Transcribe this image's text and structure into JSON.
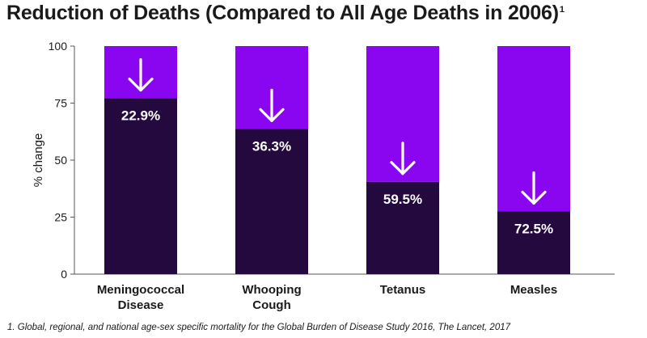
{
  "chart_data": {
    "type": "bar",
    "title": "Reduction of Deaths (Compared to All Age Deaths in 2006)",
    "title_footnote_marker": "1",
    "ylabel": "% change",
    "xlabel": "",
    "ylim": [
      0,
      100
    ],
    "yticks": [
      0,
      25,
      50,
      75,
      100
    ],
    "categories": [
      [
        "Meningococcal",
        "Disease"
      ],
      [
        "Whooping",
        "Cough"
      ],
      [
        "Tetanus"
      ],
      [
        "Measles"
      ]
    ],
    "remaining_values": [
      77.1,
      63.7,
      40.5,
      27.5
    ],
    "reduction_values": [
      22.9,
      36.3,
      59.5,
      72.5
    ],
    "data_labels": [
      "22.9%",
      "36.3%",
      "59.5%",
      "72.5%"
    ],
    "grid": false,
    "legend": "none",
    "colors": {
      "remaining": "#24093f",
      "reduction": "#8b06f0",
      "arrow": "#ffffff",
      "label": "#ffffff"
    },
    "footnote": "1. Global, regional, and national age-sex specific mortality for the Global Burden of Disease Study 2016, The Lancet, 2017"
  }
}
